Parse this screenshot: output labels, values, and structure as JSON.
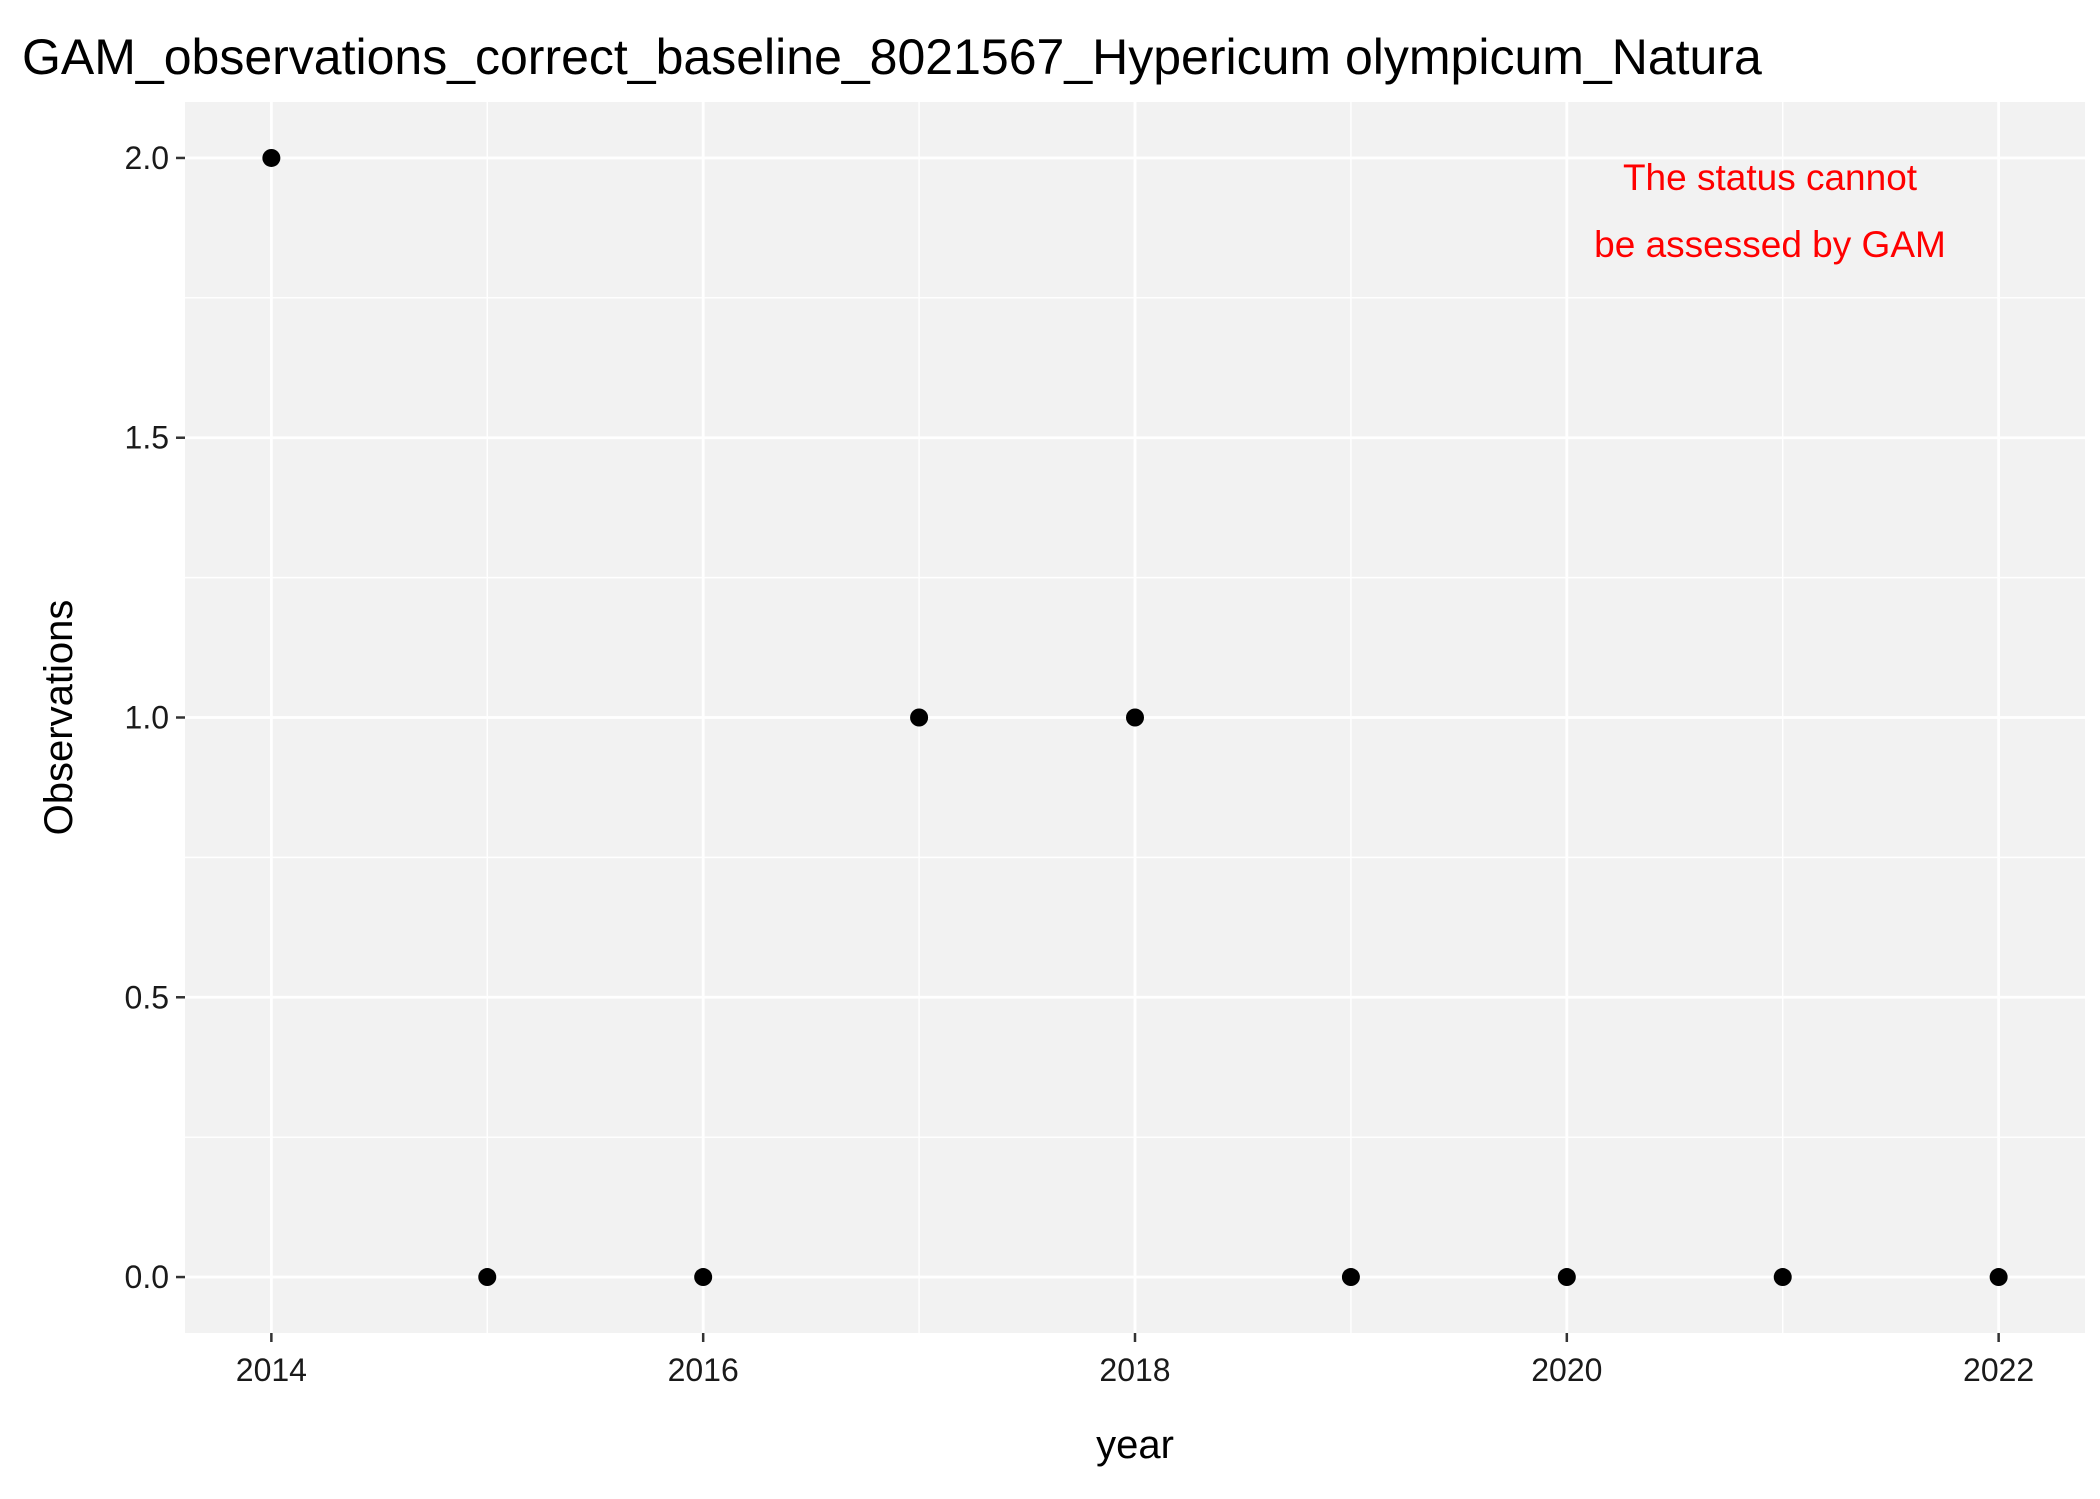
{
  "chart_data": {
    "type": "scatter",
    "title": "GAM_observations_correct_baseline_8021567_Hypericum olympicum_Natura",
    "xlabel": "year",
    "ylabel": "Observations",
    "x": [
      2014,
      2015,
      2016,
      2017,
      2018,
      2019,
      2020,
      2021,
      2022
    ],
    "y": [
      2,
      0,
      0,
      1,
      1,
      0,
      0,
      0,
      0
    ],
    "xlim": [
      2013.6,
      2022.4
    ],
    "ylim": [
      -0.1,
      2.1
    ],
    "x_ticks": [
      2014,
      2016,
      2018,
      2020,
      2022
    ],
    "x_tick_labels": [
      "2014",
      "2016",
      "2018",
      "2020",
      "2022"
    ],
    "x_minor_ticks": [
      2015,
      2017,
      2019,
      2021
    ],
    "y_ticks": [
      0,
      0.5,
      1,
      1.5,
      2
    ],
    "y_tick_labels": [
      "0.0",
      "0.5",
      "1.0",
      "1.5",
      "2.0"
    ],
    "y_minor_ticks": [
      0.25,
      0.75,
      1.25,
      1.75
    ],
    "grid": true,
    "annotation": {
      "lines": [
        "The status cannot",
        "be assessed by GAM"
      ],
      "color": "#ff0000"
    },
    "colors": {
      "panel_background": "#f2f2f2",
      "grid": "#ffffff",
      "point": "#000000"
    }
  }
}
